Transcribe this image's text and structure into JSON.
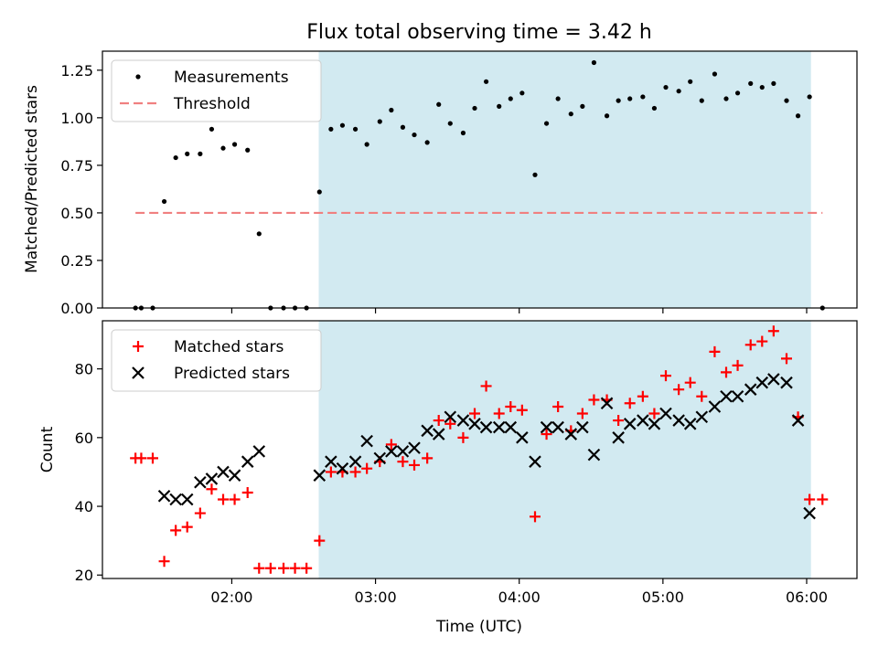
{
  "chart_data": {
    "type": "scatter",
    "title": "Flux total observing time = 3.42 h",
    "xlabel": "Time (UTC)",
    "x_unit": "hours (UTC)",
    "x_ticks": [
      {
        "value": 2.0,
        "label": "02:00"
      },
      {
        "value": 3.0,
        "label": "03:00"
      },
      {
        "value": 4.0,
        "label": "04:00"
      },
      {
        "value": 5.0,
        "label": "05:00"
      },
      {
        "value": 6.0,
        "label": "06:00"
      }
    ],
    "xlim": [
      1.1,
      6.35
    ],
    "shaded_span": {
      "start": 2.605,
      "end": 6.03,
      "color": "#add8e6"
    },
    "panels": [
      {
        "ylabel": "Matched/Predicted stars",
        "ylim": [
          0,
          1.35
        ],
        "y_ticks": [
          "0.00",
          "0.25",
          "0.50",
          "0.75",
          "1.00",
          "1.25"
        ],
        "y_tick_values": [
          0,
          0.25,
          0.5,
          0.75,
          1.0,
          1.25
        ],
        "legend_position": "upper-left",
        "series": [
          {
            "name": "Measurements",
            "marker": "dot",
            "color": "#000000",
            "x": [
              1.33,
              1.37,
              1.45,
              1.53,
              1.61,
              1.69,
              1.78,
              1.86,
              1.94,
              2.02,
              2.11,
              2.19,
              2.27,
              2.36,
              2.44,
              2.52,
              2.61,
              2.69,
              2.77,
              2.86,
              2.94,
              3.03,
              3.11,
              3.19,
              3.27,
              3.36,
              3.44,
              3.52,
              3.61,
              3.69,
              3.77,
              3.86,
              3.94,
              4.02,
              4.11,
              4.19,
              4.27,
              4.36,
              4.44,
              4.52,
              4.61,
              4.69,
              4.77,
              4.86,
              4.94,
              5.02,
              5.11,
              5.19,
              5.27,
              5.36,
              5.44,
              5.52,
              5.61,
              5.69,
              5.77,
              5.86,
              5.94,
              6.02,
              6.11
            ],
            "y": [
              0,
              0,
              0,
              0.56,
              0.79,
              0.81,
              0.81,
              0.94,
              0.84,
              0.86,
              0.83,
              0.39,
              0,
              0,
              0,
              0,
              0.61,
              0.94,
              0.96,
              0.94,
              0.86,
              0.98,
              1.04,
              0.95,
              0.91,
              0.87,
              1.07,
              0.97,
              0.92,
              1.05,
              1.19,
              1.06,
              1.1,
              1.13,
              0.7,
              0.97,
              1.1,
              1.02,
              1.06,
              1.29,
              1.01,
              1.09,
              1.1,
              1.11,
              1.05,
              1.16,
              1.14,
              1.19,
              1.09,
              1.23,
              1.1,
              1.13,
              1.18,
              1.16,
              1.18,
              1.09,
              1.01,
              1.11,
              0
            ]
          },
          {
            "name": "Threshold",
            "marker": "dashed-line",
            "color": "#f08080",
            "x": [
              1.33,
              6.11
            ],
            "y": [
              0.5,
              0.5
            ]
          }
        ]
      },
      {
        "ylabel": "Count",
        "ylim": [
          19,
          94
        ],
        "y_ticks": [
          "20",
          "40",
          "60",
          "80"
        ],
        "y_tick_values": [
          20,
          40,
          60,
          80
        ],
        "legend_position": "upper-left",
        "series": [
          {
            "name": "Matched stars",
            "marker": "plus",
            "color": "#ff0000",
            "x": [
              1.33,
              1.37,
              1.45,
              1.53,
              1.61,
              1.69,
              1.78,
              1.86,
              1.94,
              2.02,
              2.11,
              2.19,
              2.27,
              2.36,
              2.44,
              2.52,
              2.61,
              2.69,
              2.77,
              2.86,
              2.94,
              3.03,
              3.11,
              3.19,
              3.27,
              3.36,
              3.44,
              3.52,
              3.61,
              3.69,
              3.77,
              3.86,
              3.94,
              4.02,
              4.11,
              4.19,
              4.27,
              4.36,
              4.44,
              4.52,
              4.61,
              4.69,
              4.77,
              4.86,
              4.94,
              5.02,
              5.11,
              5.19,
              5.27,
              5.36,
              5.44,
              5.52,
              5.61,
              5.69,
              5.77,
              5.86,
              5.94,
              6.02,
              6.11
            ],
            "y": [
              54,
              54,
              54,
              24,
              33,
              34,
              38,
              45,
              42,
              42,
              44,
              22,
              22,
              22,
              22,
              22,
              30,
              50,
              50,
              50,
              51,
              53,
              58,
              53,
              52,
              54,
              65,
              64,
              60,
              67,
              75,
              67,
              69,
              68,
              37,
              61,
              69,
              62,
              67,
              71,
              71,
              65,
              70,
              72,
              67,
              78,
              74,
              76,
              72,
              85,
              79,
              81,
              87,
              88,
              91,
              83,
              66,
              42,
              42
            ]
          },
          {
            "name": "Predicted stars",
            "marker": "x",
            "color": "#000000",
            "x": [
              1.53,
              1.61,
              1.69,
              1.78,
              1.86,
              1.94,
              2.02,
              2.11,
              2.19,
              2.61,
              2.69,
              2.77,
              2.86,
              2.94,
              3.03,
              3.11,
              3.19,
              3.27,
              3.36,
              3.44,
              3.52,
              3.61,
              3.69,
              3.77,
              3.86,
              3.94,
              4.02,
              4.11,
              4.19,
              4.27,
              4.36,
              4.44,
              4.52,
              4.61,
              4.69,
              4.77,
              4.86,
              4.94,
              5.02,
              5.11,
              5.19,
              5.27,
              5.36,
              5.44,
              5.52,
              5.61,
              5.69,
              5.77,
              5.86,
              5.94,
              6.02
            ],
            "y": [
              43,
              42,
              42,
              47,
              48,
              50,
              49,
              53,
              56,
              49,
              53,
              51,
              53,
              59,
              54,
              56,
              56,
              57,
              62,
              61,
              66,
              65,
              64,
              63,
              63,
              63,
              60,
              53,
              63,
              63,
              61,
              63,
              55,
              70,
              60,
              64,
              65,
              64,
              67,
              65,
              64,
              66,
              69,
              72,
              72,
              74,
              76,
              77,
              76,
              65,
              38
            ]
          }
        ]
      }
    ]
  }
}
